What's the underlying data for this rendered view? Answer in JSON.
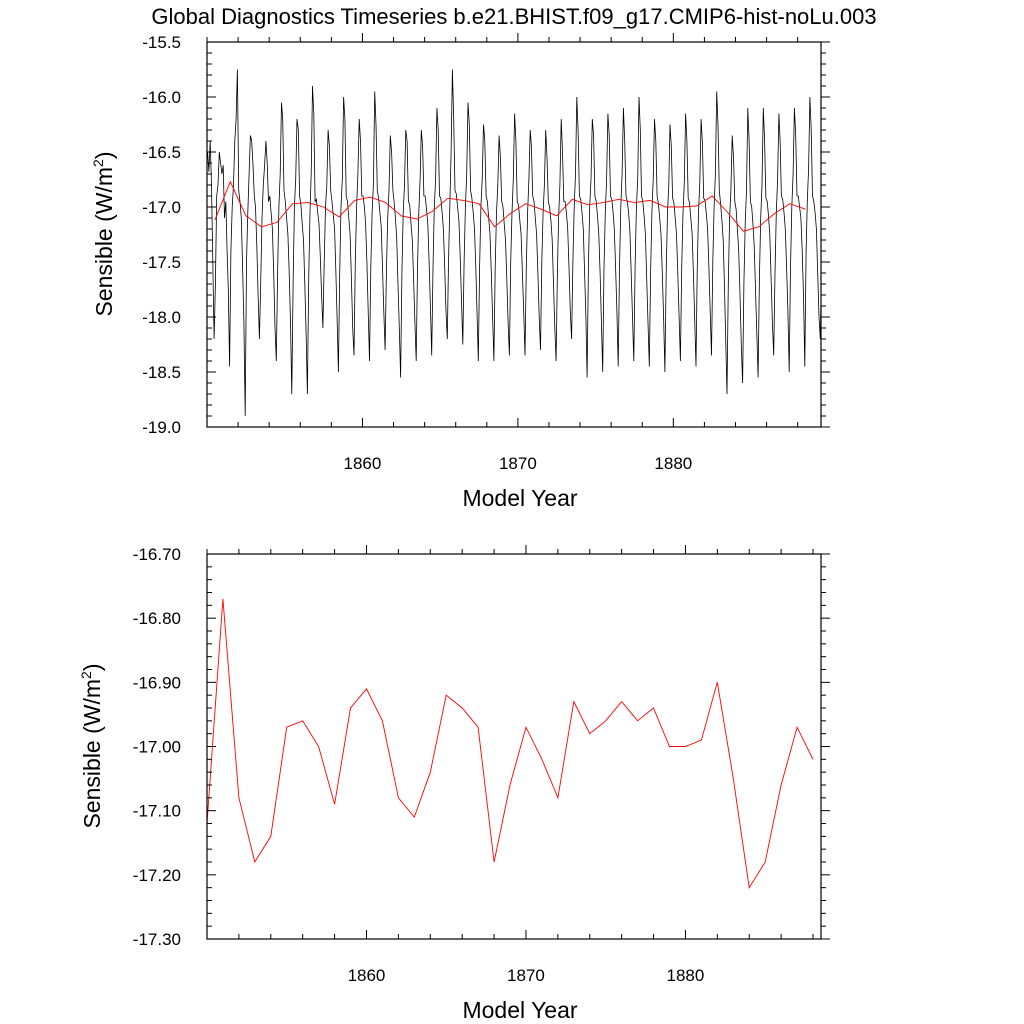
{
  "title": "Global Diagnostics Timeseries b.e21.BHIST.f09_g17.CMIP6-hist-noLu.003",
  "chart_data": [
    {
      "type": "line",
      "xlabel": "Model Year",
      "ylabel": "Sensible (W/m²)",
      "ylabel_main": "Sensible (W/m",
      "ylabel_sup": "2",
      "ylabel_close": ")",
      "xlim": [
        1850,
        1889.5
      ],
      "ylim": [
        -19.0,
        -15.5
      ],
      "xticks": [
        1860,
        1870,
        1880
      ],
      "xtick_labels": [
        "1860",
        "1870",
        "1880"
      ],
      "yticks": [
        -19.0,
        -18.5,
        -18.0,
        -17.5,
        -17.0,
        -16.5,
        -16.0,
        -15.5
      ],
      "ytick_labels": [
        "-19.0",
        "-18.5",
        "-18.0",
        "-17.5",
        "-17.0",
        "-16.5",
        "-16.0",
        "-15.5"
      ],
      "grid": false,
      "series": [
        {
          "color": "#000000",
          "x_start": 1850.04,
          "x_step": 0.08333,
          "values": [
            -16.5,
            -16.68,
            -16.4,
            -16.8,
            -17.5,
            -18.2,
            -17.7,
            -16.9,
            -16.8,
            -16.5,
            -16.6,
            -16.7,
            -16.62,
            -17.1,
            -16.95,
            -17.4,
            -17.75,
            -18.45,
            -17.4,
            -17.0,
            -16.8,
            -16.4,
            -16.2,
            -15.75,
            -16.85,
            -16.95,
            -17.1,
            -17.55,
            -18.05,
            -18.9,
            -17.5,
            -17.05,
            -16.7,
            -16.35,
            -16.4,
            -16.62,
            -16.9,
            -17.0,
            -17.35,
            -17.8,
            -18.2,
            -17.7,
            -17.1,
            -16.8,
            -16.62,
            -16.4,
            -16.6,
            -16.95,
            -16.9,
            -17.05,
            -17.2,
            -17.6,
            -18.1,
            -18.4,
            -17.6,
            -17.0,
            -16.7,
            -16.05,
            -16.2,
            -16.85,
            -16.95,
            -17.1,
            -17.25,
            -17.6,
            -18.05,
            -18.7,
            -17.7,
            -17.0,
            -16.75,
            -16.2,
            -16.3,
            -16.9,
            -16.98,
            -17.15,
            -17.3,
            -17.7,
            -18.15,
            -18.7,
            -17.65,
            -17.05,
            -16.7,
            -15.9,
            -16.15,
            -16.95,
            -16.93,
            -17.05,
            -17.15,
            -17.45,
            -17.8,
            -18.1,
            -17.5,
            -17.0,
            -16.8,
            -16.3,
            -16.45,
            -16.85,
            -16.95,
            -17.08,
            -17.2,
            -17.6,
            -18.05,
            -18.5,
            -17.6,
            -17.0,
            -16.75,
            -16.0,
            -16.2,
            -16.9,
            -16.95,
            -17.1,
            -17.25,
            -17.65,
            -18.1,
            -18.35,
            -17.5,
            -17.0,
            -16.7,
            -16.2,
            -16.4,
            -16.9,
            -16.9,
            -17.0,
            -17.15,
            -17.5,
            -17.95,
            -18.4,
            -17.55,
            -17.05,
            -16.8,
            -15.95,
            -16.25,
            -16.85,
            -16.92,
            -17.05,
            -17.18,
            -17.55,
            -17.95,
            -18.3,
            -17.6,
            -17.1,
            -16.85,
            -16.35,
            -16.5,
            -16.85,
            -16.95,
            -17.1,
            -17.28,
            -17.7,
            -18.1,
            -18.55,
            -17.6,
            -17.05,
            -16.8,
            -16.3,
            -16.4,
            -16.95,
            -16.98,
            -17.15,
            -17.3,
            -17.65,
            -18.05,
            -18.4,
            -17.55,
            -17.05,
            -16.75,
            -16.3,
            -16.45,
            -16.9,
            -16.9,
            -17.02,
            -17.15,
            -17.5,
            -17.9,
            -18.35,
            -17.55,
            -17.0,
            -16.75,
            -16.1,
            -16.3,
            -16.9,
            -16.92,
            -17.05,
            -17.2,
            -17.55,
            -17.95,
            -18.2,
            -17.5,
            -17.0,
            -16.5,
            -15.75,
            -16.2,
            -16.85,
            -16.88,
            -17.0,
            -17.12,
            -17.45,
            -17.85,
            -18.25,
            -17.5,
            -17.0,
            -16.7,
            -16.05,
            -16.25,
            -16.85,
            -16.92,
            -17.05,
            -17.2,
            -17.55,
            -17.95,
            -18.4,
            -17.55,
            -17.0,
            -16.75,
            -16.25,
            -16.4,
            -16.9,
            -16.95,
            -17.1,
            -17.25,
            -17.6,
            -18.0,
            -18.4,
            -17.55,
            -17.05,
            -16.8,
            -16.35,
            -16.55,
            -16.95,
            -17.0,
            -17.15,
            -17.3,
            -17.65,
            -18.05,
            -18.35,
            -17.5,
            -17.05,
            -16.75,
            -16.15,
            -16.4,
            -16.95,
            -16.98,
            -17.12,
            -17.25,
            -17.6,
            -17.95,
            -18.35,
            -17.55,
            -17.05,
            -16.75,
            -16.3,
            -16.45,
            -16.9,
            -16.95,
            -17.1,
            -17.25,
            -17.6,
            -18.0,
            -18.3,
            -17.5,
            -17.05,
            -16.8,
            -16.3,
            -16.55,
            -16.95,
            -17.0,
            -17.12,
            -17.3,
            -17.7,
            -18.1,
            -18.4,
            -17.6,
            -17.1,
            -16.8,
            -16.2,
            -16.5,
            -16.95,
            -16.95,
            -17.05,
            -17.2,
            -17.55,
            -17.95,
            -18.2,
            -17.5,
            -17.0,
            -16.7,
            -16.0,
            -16.3,
            -16.9,
            -16.93,
            -17.05,
            -17.2,
            -17.6,
            -18.0,
            -18.55,
            -17.55,
            -17.0,
            -16.75,
            -16.2,
            -16.35,
            -16.9,
            -16.95,
            -17.08,
            -17.25,
            -17.6,
            -18.05,
            -18.5,
            -17.55,
            -17.05,
            -16.75,
            -16.15,
            -16.35,
            -16.9,
            -16.93,
            -17.05,
            -17.2,
            -17.55,
            -17.95,
            -18.45,
            -17.55,
            -17.0,
            -16.7,
            -16.1,
            -16.4,
            -16.9,
            -16.95,
            -17.05,
            -17.22,
            -17.6,
            -18.0,
            -18.4,
            -17.55,
            -17.0,
            -16.75,
            -16.0,
            -16.3,
            -16.9,
            -16.95,
            -17.08,
            -17.25,
            -17.65,
            -18.05,
            -18.45,
            -17.6,
            -17.05,
            -16.75,
            -16.2,
            -16.4,
            -16.9,
            -16.97,
            -17.1,
            -17.25,
            -17.6,
            -18.0,
            -18.5,
            -17.6,
            -17.05,
            -16.8,
            -16.25,
            -16.45,
            -16.92,
            -16.96,
            -17.1,
            -17.25,
            -17.6,
            -18.0,
            -18.4,
            -17.55,
            -17.05,
            -16.78,
            -16.15,
            -16.4,
            -16.92,
            -16.96,
            -17.1,
            -17.24,
            -17.6,
            -18.02,
            -18.45,
            -17.58,
            -17.05,
            -16.78,
            -16.2,
            -16.42,
            -16.92,
            -16.94,
            -17.06,
            -17.2,
            -17.55,
            -17.95,
            -18.35,
            -17.5,
            -17.0,
            -16.7,
            -15.95,
            -16.25,
            -16.85,
            -16.97,
            -17.12,
            -17.3,
            -17.7,
            -18.2,
            -18.7,
            -17.7,
            -17.1,
            -16.85,
            -16.35,
            -16.55,
            -16.95,
            -17.02,
            -17.2,
            -17.4,
            -17.8,
            -18.25,
            -18.6,
            -17.7,
            -17.15,
            -16.85,
            -16.1,
            -16.4,
            -16.95,
            -17.0,
            -17.15,
            -17.35,
            -17.75,
            -18.15,
            -18.55,
            -17.65,
            -17.1,
            -16.8,
            -16.1,
            -16.4,
            -16.92,
            -16.95,
            -17.08,
            -17.25,
            -17.65,
            -18.05,
            -18.35,
            -17.6,
            -17.05,
            -16.75,
            -16.15,
            -16.4,
            -16.9,
            -16.93,
            -17.05,
            -17.2,
            -17.55,
            -17.95,
            -18.5,
            -17.55,
            -17.0,
            -16.7,
            -16.1,
            -16.35,
            -16.9,
            -16.9,
            -17.0,
            -17.1,
            -17.4,
            -17.8,
            -18.45,
            -17.4,
            -16.95,
            -16.65,
            -16.0,
            -16.3,
            -16.9,
            -16.95,
            -17.05,
            -17.2,
            -17.6,
            -18.0,
            -18.2,
            -17.5,
            -17.0
          ]
        },
        {
          "color": "#ff0000",
          "x_start": 1850.5,
          "x_step": 1,
          "values": [
            -17.12,
            -16.77,
            -17.08,
            -17.18,
            -17.14,
            -16.97,
            -16.96,
            -17.0,
            -17.09,
            -16.94,
            -16.91,
            -16.96,
            -17.08,
            -17.11,
            -17.04,
            -16.92,
            -16.94,
            -16.97,
            -17.18,
            -17.06,
            -16.97,
            -17.02,
            -17.08,
            -16.93,
            -16.98,
            -16.96,
            -16.93,
            -16.96,
            -16.94,
            -17.0,
            -17.0,
            -16.99,
            -16.9,
            -17.05,
            -17.22,
            -17.18,
            -17.06,
            -16.97,
            -17.02
          ]
        }
      ]
    },
    {
      "type": "line",
      "xlabel": "Model Year",
      "ylabel": "Sensible (W/m²)",
      "ylabel_main": "Sensible (W/m",
      "ylabel_sup": "2",
      "ylabel_close": ")",
      "xlim": [
        1850,
        1888.5
      ],
      "ylim": [
        -17.3,
        -16.7
      ],
      "xticks": [
        1860,
        1870,
        1880
      ],
      "xtick_labels": [
        "1860",
        "1870",
        "1880"
      ],
      "yticks": [
        -17.3,
        -17.2,
        -17.1,
        -17.0,
        -16.9,
        -16.8,
        -16.7
      ],
      "ytick_labels": [
        "-17.30",
        "-17.20",
        "-17.10",
        "-17.00",
        "-16.90",
        "-16.80",
        "-16.70"
      ],
      "grid": false,
      "series": [
        {
          "color": "#ff0000",
          "x_start": 1850.0,
          "x_step": 1,
          "values": [
            -17.12,
            -16.77,
            -17.08,
            -17.18,
            -17.14,
            -16.97,
            -16.96,
            -17.0,
            -17.09,
            -16.94,
            -16.91,
            -16.96,
            -17.08,
            -17.11,
            -17.04,
            -16.92,
            -16.94,
            -16.97,
            -17.18,
            -17.06,
            -16.97,
            -17.02,
            -17.08,
            -16.93,
            -16.98,
            -16.96,
            -16.93,
            -16.96,
            -16.94,
            -17.0,
            -17.0,
            -16.99,
            -16.9,
            -17.05,
            -17.22,
            -17.18,
            -17.06,
            -16.97,
            -17.02
          ]
        }
      ]
    }
  ]
}
